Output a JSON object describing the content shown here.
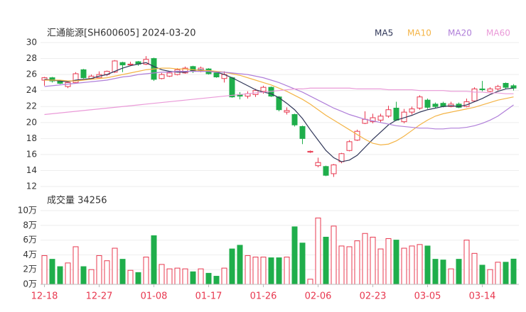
{
  "chart_data": [
    {
      "type": "candlestick",
      "title": "汇通能源[SH600605] 2024-03-20",
      "up_color": "#e8384f",
      "down_color": "#1fae4b",
      "open": [
        25.3,
        25.6,
        25.2,
        24.5,
        25.0,
        26.6,
        25.5,
        25.6,
        26.0,
        26.3,
        27.5,
        27.2,
        27.6,
        27.3,
        28.0,
        25.5,
        25.8,
        26.0,
        26.2,
        27.0,
        26.4,
        26.7,
        26.2,
        25.5,
        25.6,
        23.5,
        23.3,
        23.5,
        23.9,
        24.4,
        23.2,
        21.3,
        21.0,
        19.5,
        16.3,
        14.6,
        14.5,
        13.6,
        15.1,
        16.5,
        17.8,
        19.9,
        20.1,
        20.3,
        20.8,
        21.8,
        20.1,
        21.3,
        21.8,
        22.8,
        22.3,
        22.4,
        22.0,
        22.3,
        22.0,
        22.7,
        24.2,
        23.9,
        24.2,
        24.9,
        24.6
      ],
      "high": [
        25.7,
        25.7,
        25.3,
        25.1,
        26.3,
        26.7,
        26.0,
        26.4,
        26.5,
        27.8,
        27.6,
        27.6,
        27.7,
        28.3,
        28.1,
        26.2,
        26.4,
        26.8,
        27.0,
        27.1,
        27.0,
        26.8,
        26.3,
        26.4,
        25.7,
        23.8,
        23.9,
        24.2,
        24.6,
        24.5,
        23.3,
        21.9,
        21.1,
        19.6,
        16.5,
        15.6,
        14.6,
        14.8,
        16.2,
        17.8,
        19.1,
        21.4,
        21.1,
        21.1,
        22.1,
        22.6,
        21.7,
        22.0,
        23.4,
        23.0,
        22.5,
        22.6,
        22.6,
        22.5,
        23.0,
        24.4,
        25.2,
        24.4,
        24.7,
        25.0,
        24.8
      ],
      "low": [
        24.6,
        25.0,
        24.8,
        24.3,
        24.9,
        25.5,
        25.4,
        25.5,
        25.8,
        26.2,
        26.3,
        27.1,
        27.1,
        27.2,
        25.2,
        25.4,
        25.7,
        25.9,
        26.1,
        26.2,
        26.3,
        26.0,
        25.6,
        25.0,
        23.1,
        22.9,
        23.0,
        23.2,
        23.6,
        23.2,
        21.4,
        21.0,
        19.5,
        17.3,
        16.2,
        14.4,
        13.3,
        13.2,
        14.9,
        16.4,
        17.7,
        19.8,
        19.9,
        20.0,
        20.6,
        20.2,
        19.9,
        21.0,
        21.6,
        21.7,
        21.8,
        21.9,
        21.9,
        21.8,
        21.9,
        22.6,
        23.9,
        23.8,
        24.0,
        24.2,
        24.0
      ],
      "close": [
        25.6,
        25.2,
        24.9,
        25.0,
        26.1,
        25.6,
        25.8,
        26.0,
        26.4,
        27.7,
        27.2,
        27.3,
        27.3,
        27.9,
        25.4,
        26.0,
        26.2,
        26.6,
        26.8,
        26.4,
        26.8,
        26.1,
        25.7,
        26.0,
        23.2,
        23.3,
        23.6,
        24.0,
        24.4,
        23.3,
        21.6,
        21.5,
        19.7,
        18.0,
        16.4,
        15.0,
        13.4,
        14.7,
        16.1,
        17.6,
        18.9,
        20.4,
        20.6,
        20.8,
        21.6,
        20.3,
        21.3,
        21.7,
        23.2,
        21.9,
        22.0,
        22.0,
        22.3,
        21.9,
        22.6,
        24.2,
        24.1,
        24.2,
        24.5,
        24.4,
        24.3
      ],
      "series": [
        {
          "name": "MA5",
          "color": "#2f3658",
          "values": [
            25.4,
            25.3,
            25.2,
            25.1,
            25.3,
            25.4,
            25.5,
            25.8,
            26.0,
            26.4,
            26.8,
            27.1,
            27.3,
            27.5,
            27.0,
            26.6,
            26.4,
            26.3,
            26.3,
            26.5,
            26.6,
            26.4,
            26.3,
            26.0,
            25.6,
            25.1,
            24.6,
            24.1,
            23.8,
            23.6,
            23.1,
            22.4,
            21.6,
            20.5,
            19.1,
            17.8,
            16.5,
            15.6,
            15.1,
            15.3,
            15.9,
            16.9,
            17.9,
            18.8,
            19.7,
            20.3,
            20.6,
            20.9,
            21.3,
            21.6,
            21.8,
            22.0,
            22.1,
            22.0,
            22.2,
            22.6,
            23.0,
            23.5,
            23.9,
            24.2,
            24.3
          ]
        },
        {
          "name": "MA10",
          "color": "#f4b446",
          "values": [
            25.3,
            25.3,
            25.3,
            25.2,
            25.2,
            25.3,
            25.4,
            25.5,
            25.6,
            25.8,
            26.0,
            26.2,
            26.4,
            26.6,
            26.7,
            26.8,
            26.8,
            26.7,
            26.7,
            26.6,
            26.5,
            26.5,
            26.4,
            26.3,
            26.1,
            25.9,
            25.6,
            25.3,
            25.0,
            24.7,
            24.3,
            23.9,
            23.4,
            22.9,
            22.3,
            21.6,
            20.9,
            20.3,
            19.7,
            19.1,
            18.5,
            17.9,
            17.4,
            17.2,
            17.3,
            17.7,
            18.3,
            19.0,
            19.7,
            20.3,
            20.8,
            21.1,
            21.3,
            21.5,
            21.7,
            21.9,
            22.2,
            22.5,
            22.8,
            23.0,
            23.2
          ]
        },
        {
          "name": "MA20",
          "color": "#b07fd9",
          "values": [
            24.5,
            24.6,
            24.7,
            24.8,
            24.9,
            25.0,
            25.1,
            25.2,
            25.3,
            25.5,
            25.7,
            25.8,
            26.0,
            26.1,
            26.2,
            26.3,
            26.3,
            26.4,
            26.4,
            26.4,
            26.4,
            26.4,
            26.3,
            26.3,
            26.2,
            26.1,
            26.0,
            25.8,
            25.6,
            25.3,
            25.0,
            24.6,
            24.2,
            23.8,
            23.3,
            22.8,
            22.3,
            21.8,
            21.4,
            21.0,
            20.7,
            20.4,
            20.2,
            20.0,
            19.8,
            19.6,
            19.5,
            19.4,
            19.3,
            19.3,
            19.2,
            19.2,
            19.3,
            19.3,
            19.4,
            19.6,
            19.9,
            20.3,
            20.8,
            21.5,
            22.2
          ]
        },
        {
          "name": "MA60",
          "color": "#ea9ad8",
          "values": [
            21.0,
            21.1,
            21.2,
            21.3,
            21.4,
            21.5,
            21.6,
            21.7,
            21.8,
            21.9,
            22.0,
            22.1,
            22.2,
            22.3,
            22.4,
            22.5,
            22.6,
            22.7,
            22.8,
            22.9,
            23.0,
            23.1,
            23.2,
            23.3,
            23.4,
            23.5,
            23.6,
            23.7,
            23.8,
            23.9,
            24.0,
            24.1,
            24.2,
            24.2,
            24.3,
            24.3,
            24.3,
            24.3,
            24.3,
            24.3,
            24.2,
            24.2,
            24.2,
            24.2,
            24.1,
            24.1,
            24.1,
            24.1,
            24.0,
            24.0,
            24.0,
            24.0,
            23.9,
            23.9,
            23.9,
            23.8,
            23.8,
            23.7,
            23.7,
            23.6,
            23.6
          ]
        }
      ],
      "ylim": [
        12,
        30
      ],
      "yticks": [
        12,
        14,
        16,
        18,
        20,
        22,
        24,
        26,
        28,
        30
      ],
      "grid": true
    },
    {
      "type": "bar",
      "title": "成交量 34256",
      "categories": [
        "12-18",
        null,
        null,
        null,
        null,
        null,
        null,
        "12-27",
        null,
        null,
        null,
        null,
        null,
        null,
        "01-08",
        null,
        null,
        null,
        null,
        null,
        null,
        "01-17",
        null,
        null,
        null,
        null,
        null,
        null,
        "01-26",
        null,
        null,
        null,
        null,
        null,
        null,
        "02-06",
        null,
        null,
        null,
        null,
        null,
        null,
        "02-23",
        null,
        null,
        null,
        null,
        null,
        null,
        "03-05",
        null,
        null,
        null,
        null,
        null,
        null,
        "03-14",
        null,
        null,
        null,
        null
      ],
      "values": [
        3.9,
        3.4,
        2.4,
        2.9,
        5.1,
        2.4,
        2.0,
        3.9,
        3.2,
        4.9,
        3.4,
        1.9,
        1.6,
        3.7,
        6.6,
        2.7,
        2.1,
        2.2,
        2.1,
        1.7,
        2.1,
        1.5,
        1.1,
        2.2,
        4.8,
        5.3,
        3.9,
        3.7,
        3.7,
        3.6,
        3.6,
        3.7,
        7.8,
        5.6,
        0.7,
        9.0,
        6.4,
        7.9,
        5.2,
        5.1,
        5.9,
        6.9,
        6.4,
        4.8,
        6.2,
        6.0,
        4.9,
        5.2,
        5.4,
        5.2,
        3.4,
        3.3,
        2.1,
        3.4,
        6.0,
        4.2,
        2.6,
        2.0,
        3.0,
        3.0,
        3.4256
      ],
      "ylim": [
        0,
        10
      ],
      "yticks": [
        {
          "value": 0,
          "label": "0万"
        },
        {
          "value": 2,
          "label": "2万"
        },
        {
          "value": 4,
          "label": "4万"
        },
        {
          "value": 6,
          "label": "6万"
        },
        {
          "value": 8,
          "label": "8万"
        },
        {
          "value": 10,
          "label": "10万"
        }
      ],
      "xtick_color": "#e8384f",
      "grid": true
    }
  ]
}
